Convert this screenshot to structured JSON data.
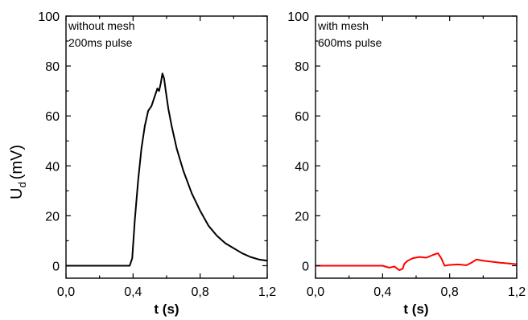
{
  "ylabel_main": "U",
  "ylabel_sub": "d",
  "ylabel_unit": "(mV)",
  "chart_data": [
    {
      "type": "line",
      "annotation_lines": [
        "without mesh",
        "200ms pulse"
      ],
      "xlabel": "t (s)",
      "xlim": [
        0.0,
        1.2
      ],
      "ylim": [
        -5,
        100
      ],
      "xticks": [
        0.0,
        0.4,
        0.8,
        1.2
      ],
      "xtick_labels": [
        "0,0",
        "0,4",
        "0,8",
        "1,2"
      ],
      "yticks": [
        0,
        20,
        40,
        60,
        80,
        100
      ],
      "ytick_labels": [
        "0",
        "20",
        "40",
        "60",
        "80",
        "100"
      ],
      "grid": false,
      "series": [
        {
          "color": "#000000",
          "x": [
            0.0,
            0.1,
            0.2,
            0.3,
            0.38,
            0.395,
            0.41,
            0.43,
            0.45,
            0.47,
            0.49,
            0.51,
            0.53,
            0.545,
            0.555,
            0.565,
            0.575,
            0.585,
            0.595,
            0.61,
            0.63,
            0.66,
            0.7,
            0.75,
            0.8,
            0.85,
            0.9,
            0.95,
            1.0,
            1.05,
            1.1,
            1.15,
            1.2
          ],
          "y": [
            0,
            0,
            0,
            0,
            0,
            3,
            18,
            34,
            47,
            56,
            62,
            64,
            68,
            71,
            70,
            73,
            77,
            75,
            70,
            63,
            56,
            47,
            38,
            29,
            22,
            16,
            12,
            9,
            7,
            5,
            3.5,
            2.5,
            2
          ]
        }
      ]
    },
    {
      "type": "line",
      "annotation_lines": [
        "with mesh",
        "600ms pulse"
      ],
      "xlabel": "t (s)",
      "xlim": [
        0.0,
        1.2
      ],
      "ylim": [
        -5,
        100
      ],
      "xticks": [
        0.0,
        0.4,
        0.8,
        1.2
      ],
      "xtick_labels": [
        "0,0",
        "0,4",
        "0,8",
        "1,2"
      ],
      "yticks": [
        0,
        20,
        40,
        60,
        80,
        100
      ],
      "ytick_labels": [
        "0",
        "20",
        "40",
        "60",
        "80",
        "100"
      ],
      "grid": false,
      "series": [
        {
          "color": "#ff0000",
          "x": [
            0.0,
            0.1,
            0.2,
            0.3,
            0.4,
            0.44,
            0.47,
            0.5,
            0.52,
            0.53,
            0.55,
            0.58,
            0.62,
            0.66,
            0.7,
            0.73,
            0.75,
            0.77,
            0.8,
            0.85,
            0.9,
            0.93,
            0.96,
            1.0,
            1.05,
            1.1,
            1.15,
            1.2
          ],
          "y": [
            0,
            0,
            0,
            0,
            0,
            -0.8,
            -0.3,
            -1.8,
            -1.2,
            0.8,
            2,
            3,
            3.5,
            3.2,
            4.3,
            5,
            3,
            0,
            0.3,
            0.5,
            0.2,
            1.2,
            2.5,
            2.0,
            1.6,
            1.2,
            0.9,
            0.6
          ]
        }
      ]
    }
  ]
}
